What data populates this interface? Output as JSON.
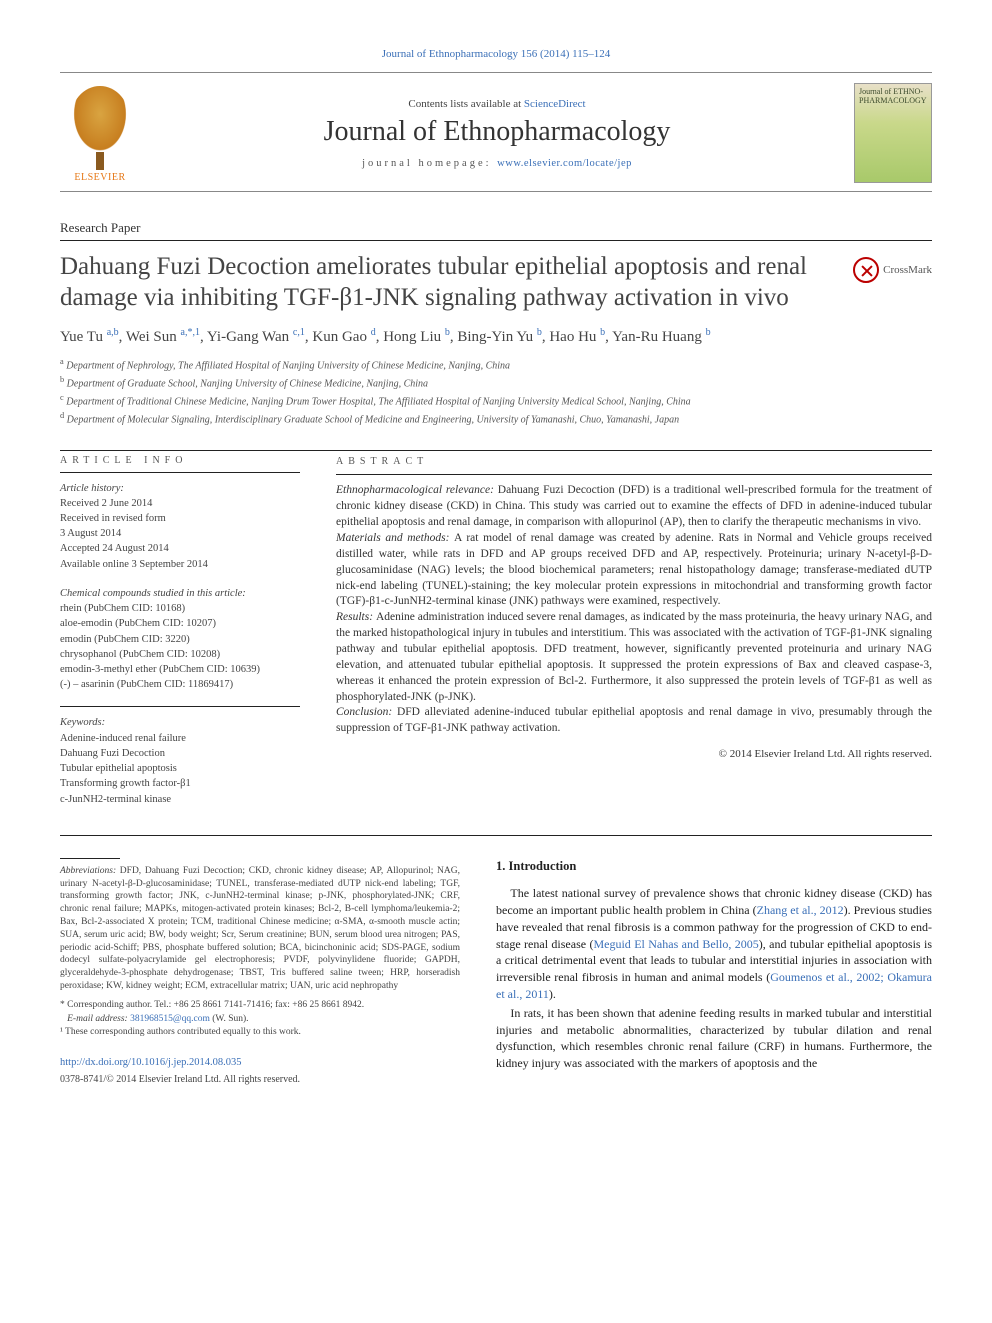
{
  "runhead": "Journal of Ethnopharmacology 156 (2014) 115–124",
  "header": {
    "contents_prefix": "Contents lists available at ",
    "contents_link": "ScienceDirect",
    "journal_name": "Journal of Ethnopharmacology",
    "homepage_label": "journal homepage: ",
    "homepage_url": "www.elsevier.com/locate/jep",
    "publisher": "ELSEVIER",
    "cover_text": "Journal of ETHNO-PHARMACOLOGY"
  },
  "paper_type": "Research Paper",
  "title": "Dahuang Fuzi Decoction ameliorates tubular epithelial apoptosis and renal damage via inhibiting TGF-β1-JNK signaling pathway activation in vivo",
  "crossmark": "CrossMark",
  "authors_html": "Yue Tu <sup>a,b</sup>, Wei Sun <sup>a,*,1</sup>, Yi-Gang Wan <sup>c,1</sup>, Kun Gao <sup>d</sup>, Hong Liu <sup>b</sup>, Bing-Yin Yu <sup>b</sup>, Hao Hu <sup>b</sup>, Yan-Ru Huang <sup>b</sup>",
  "affiliations": [
    {
      "sup": "a",
      "text": "Department of Nephrology, The Affiliated Hospital of Nanjing University of Chinese Medicine, Nanjing, China"
    },
    {
      "sup": "b",
      "text": "Department of Graduate School, Nanjing University of Chinese Medicine, Nanjing, China"
    },
    {
      "sup": "c",
      "text": "Department of Traditional Chinese Medicine, Nanjing Drum Tower Hospital, The Affiliated Hospital of Nanjing University Medical School, Nanjing, China"
    },
    {
      "sup": "d",
      "text": "Department of Molecular Signaling, Interdisciplinary Graduate School of Medicine and Engineering, University of Yamanashi, Chuo, Yamanashi, Japan"
    }
  ],
  "article_info": {
    "head": "ARTICLE INFO",
    "history_label": "Article history:",
    "history": [
      "Received 2 June 2014",
      "Received in revised form",
      "3 August 2014",
      "Accepted 24 August 2014",
      "Available online 3 September 2014"
    ],
    "compounds_label": "Chemical compounds studied in this article:",
    "compounds": [
      "rhein (PubChem CID: 10168)",
      "aloe-emodin (PubChem CID: 10207)",
      "emodin (PubChem CID: 3220)",
      "chrysophanol (PubChem CID: 10208)",
      "emodin-3-methyl ether (PubChem CID: 10639)",
      "(-) – asarinin (PubChem CID: 11869417)"
    ],
    "keywords_label": "Keywords:",
    "keywords": [
      "Adenine-induced renal failure",
      "Dahuang Fuzi Decoction",
      "Tubular epithelial apoptosis",
      "Transforming growth factor-β1",
      "c-JunNH2-terminal kinase"
    ]
  },
  "abstract": {
    "head": "ABSTRACT",
    "sections": [
      {
        "label": "Ethnopharmacological relevance:",
        "text": "Dahuang Fuzi Decoction (DFD) is a traditional well-prescribed formula for the treatment of chronic kidney disease (CKD) in China. This study was carried out to examine the effects of DFD in adenine-induced tubular epithelial apoptosis and renal damage, in comparison with allopurinol (AP), then to clarify the therapeutic mechanisms in vivo."
      },
      {
        "label": "Materials and methods:",
        "text": "A rat model of renal damage was created by adenine. Rats in Normal and Vehicle groups received distilled water, while rats in DFD and AP groups received DFD and AP, respectively. Proteinuria; urinary N-acetyl-β-D-glucosaminidase (NAG) levels; the blood biochemical parameters; renal histopathology damage; transferase-mediated dUTP nick-end labeling (TUNEL)-staining; the key molecular protein expressions in mitochondrial and transforming growth factor (TGF)-β1-c-JunNH2-terminal kinase (JNK) pathways were examined, respectively."
      },
      {
        "label": "Results:",
        "text": "Adenine administration induced severe renal damages, as indicated by the mass proteinuria, the heavy urinary NAG, and the marked histopathological injury in tubules and interstitium. This was associated with the activation of TGF-β1-JNK signaling pathway and tubular epithelial apoptosis. DFD treatment, however, significantly prevented proteinuria and urinary NAG elevation, and attenuated tubular epithelial apoptosis. It suppressed the protein expressions of Bax and cleaved caspase-3, whereas it enhanced the protein expression of Bcl-2. Furthermore, it also suppressed the protein levels of TGF-β1 as well as phosphorylated-JNK (p-JNK)."
      },
      {
        "label": "Conclusion:",
        "text": "DFD alleviated adenine-induced tubular epithelial apoptosis and renal damage in vivo, presumably through the suppression of TGF-β1-JNK pathway activation."
      }
    ],
    "copyright": "© 2014 Elsevier Ireland Ltd. All rights reserved."
  },
  "intro": {
    "head": "1.  Introduction",
    "p1_a": "The latest national survey of prevalence shows that chronic kidney disease (CKD) has become an important public health problem in China (",
    "p1_ref1": "Zhang et al., 2012",
    "p1_b": "). Previous studies have revealed that renal fibrosis is a common pathway for the progression of CKD to end-stage renal disease (",
    "p1_ref2": "Meguid El Nahas and Bello, 2005",
    "p1_c": "), and tubular epithelial apoptosis is a critical detrimental event that leads to tubular and interstitial injuries in association with irreversible renal fibrosis in human and animal models (",
    "p1_ref3": "Goumenos et al., 2002; Okamura et al., 2011",
    "p1_d": ").",
    "p2": "In rats, it has been shown that adenine feeding results in marked tubular and interstitial injuries and metabolic abnormalities, characterized by tubular dilation and renal dysfunction, which resembles chronic renal failure (CRF) in humans. Furthermore, the kidney injury was associated with the markers of apoptosis and the"
  },
  "abbrev": {
    "label": "Abbreviations:",
    "text": "DFD, Dahuang Fuzi Decoction; CKD, chronic kidney disease; AP, Allopurinol; NAG, urinary N-acetyl-β-D-glucosaminidase; TUNEL, transferase-mediated dUTP nick-end labeling; TGF, transforming growth factor; JNK, c-JunNH2-terminal kinase; p-JNK, phosphorylated-JNK; CRF, chronic renal failure; MAPKs, mitogen-activated protein kinases; Bcl-2, B-cell lymphoma/leukemia-2; Bax, Bcl-2-associated X protein; TCM, traditional Chinese medicine; α-SMA, α-smooth muscle actin; SUA, serum uric acid; BW, body weight; Scr, Serum creatinine; BUN, serum blood urea nitrogen; PAS, periodic acid-Schiff; PBS, phosphate buffered solution; BCA, bicinchoninic acid; SDS-PAGE, sodium dodecyl sulfate-polyacrylamide gel electrophoresis; PVDF, polyvinylidene fluoride; GAPDH, glyceraldehyde-3-phosphate dehydrogenase; TBST, Tris buffered saline tween; HRP, horseradish peroxidase; KW, kidney weight; ECM, extracellular matrix; UAN, uric acid nephropathy"
  },
  "footnotes": {
    "corr": "* Corresponding author. Tel.: +86 25 8661 7141-71416; fax: +86 25 8661 8942.",
    "email_label": "E-mail address:",
    "email": "381968515@qq.com",
    "email_who": "(W. Sun).",
    "equal": "¹ These corresponding authors contributed equally to this work."
  },
  "doi": "http://dx.doi.org/10.1016/j.jep.2014.08.035",
  "issn_line": "0378-8741/© 2014 Elsevier Ireland Ltd. All rights reserved."
}
